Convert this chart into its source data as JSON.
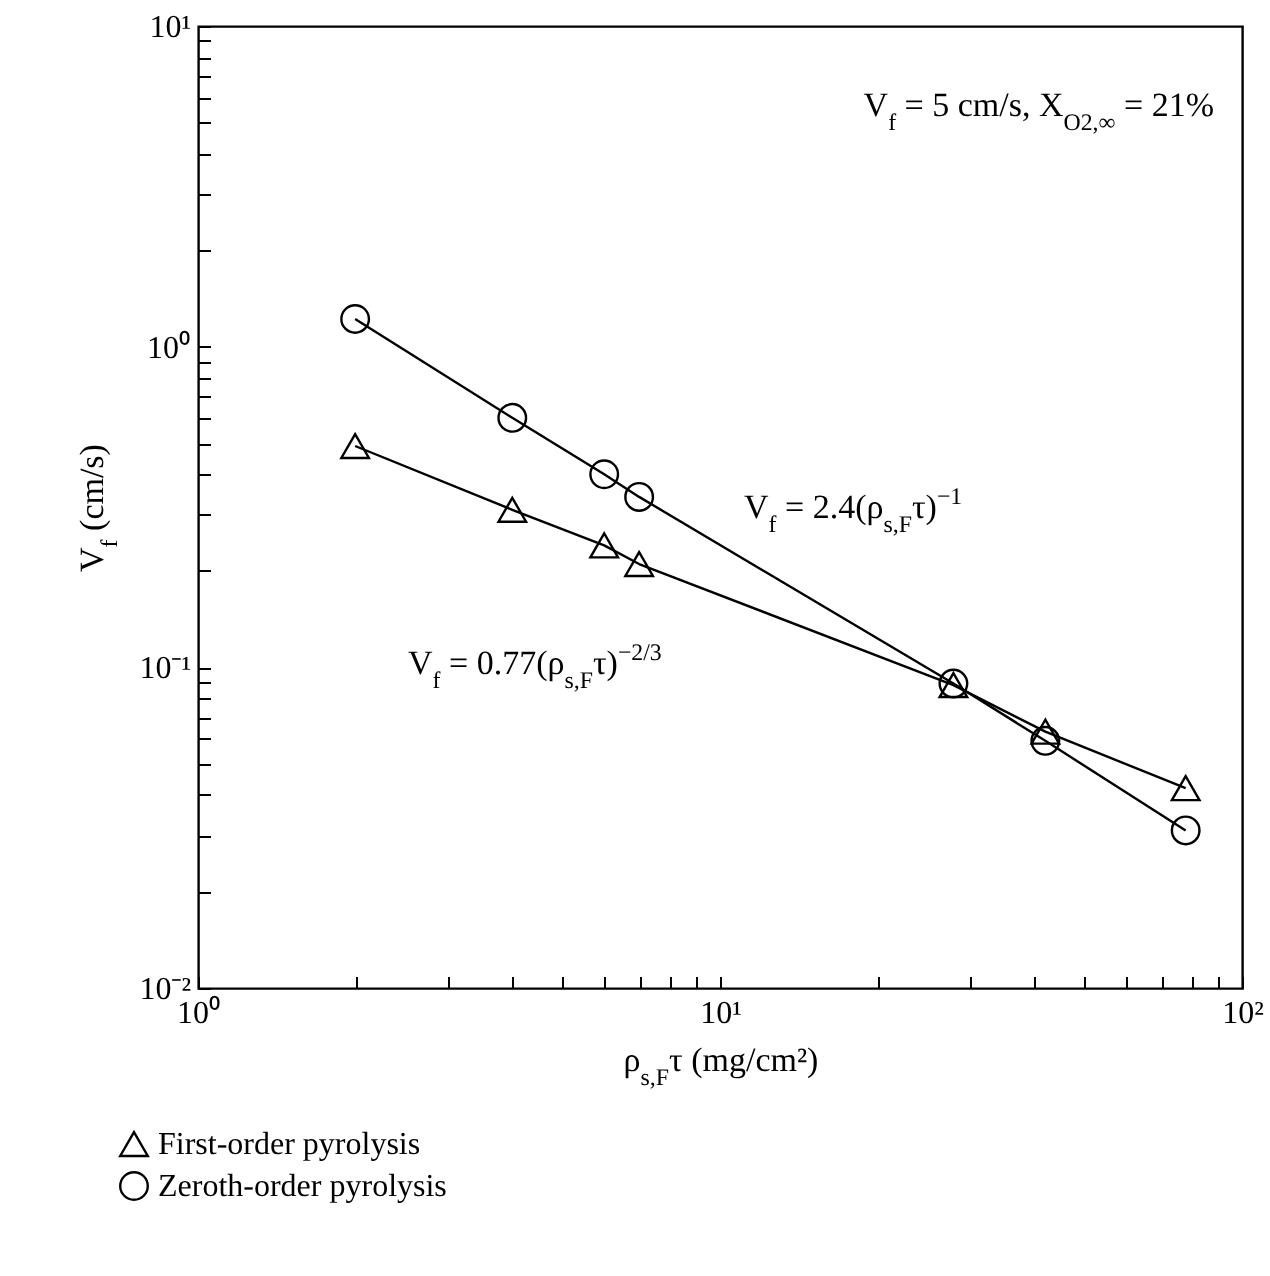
{
  "chart_data": {
    "type": "line",
    "xlabel": "ρ$_{s,F}$τ (mg/cm²)",
    "ylabel": "V$_{f}$ (cm/s)",
    "log": "xy",
    "grid": false,
    "legend": "bottom",
    "xlim": [
      1,
      100
    ],
    "ylim": [
      0.01,
      10
    ],
    "xticks": [
      {
        "value": 1,
        "label": "10⁰"
      },
      {
        "value": 2,
        "label": null
      },
      {
        "value": 3,
        "label": null
      },
      {
        "value": 4,
        "label": null
      },
      {
        "value": 5,
        "label": null
      },
      {
        "value": 6,
        "label": null
      },
      {
        "value": 7,
        "label": null
      },
      {
        "value": 8,
        "label": null
      },
      {
        "value": 9,
        "label": null
      },
      {
        "value": 10,
        "label": "10¹"
      },
      {
        "value": 20,
        "label": null
      },
      {
        "value": 30,
        "label": null
      },
      {
        "value": 40,
        "label": null
      },
      {
        "value": 50,
        "label": null
      },
      {
        "value": 60,
        "label": null
      },
      {
        "value": 70,
        "label": null
      },
      {
        "value": 80,
        "label": null
      },
      {
        "value": 90,
        "label": null
      },
      {
        "value": 100,
        "label": "10²"
      }
    ],
    "yticks": [
      {
        "value": 0.01,
        "label": "10⁻²"
      },
      {
        "value": 0.02,
        "label": null
      },
      {
        "value": 0.03,
        "label": null
      },
      {
        "value": 0.04,
        "label": null
      },
      {
        "value": 0.05,
        "label": null
      },
      {
        "value": 0.06,
        "label": null
      },
      {
        "value": 0.07,
        "label": null
      },
      {
        "value": 0.08,
        "label": null
      },
      {
        "value": 0.09,
        "label": null
      },
      {
        "value": 0.1,
        "label": "10⁻¹"
      },
      {
        "value": 0.2,
        "label": null
      },
      {
        "value": 0.3,
        "label": null
      },
      {
        "value": 0.4,
        "label": null
      },
      {
        "value": 0.5,
        "label": null
      },
      {
        "value": 0.6,
        "label": null
      },
      {
        "value": 0.7,
        "label": null
      },
      {
        "value": 0.8,
        "label": null
      },
      {
        "value": 0.9,
        "label": null
      },
      {
        "value": 1,
        "label": "10⁰"
      },
      {
        "value": 2,
        "label": null
      },
      {
        "value": 3,
        "label": null
      },
      {
        "value": 4,
        "label": null
      },
      {
        "value": 5,
        "label": null
      },
      {
        "value": 6,
        "label": null
      },
      {
        "value": 7,
        "label": null
      },
      {
        "value": 8,
        "label": null
      },
      {
        "value": 9,
        "label": null
      },
      {
        "value": 10,
        "label": "10¹"
      }
    ],
    "series": [
      {
        "name": "First-order pyrolysis",
        "color": "#000000",
        "marker": "triangle",
        "x": [
          2,
          4,
          6,
          7,
          28,
          42,
          78
        ],
        "values": [
          0.49,
          0.31,
          0.24,
          0.21,
          0.088,
          0.063,
          0.042
        ]
      },
      {
        "name": "Zeroth-order pyrolysis",
        "color": "#000000",
        "marker": "circle",
        "x": [
          2,
          4,
          6,
          7,
          28,
          42,
          78
        ],
        "values": [
          1.22,
          0.6,
          0.4,
          0.34,
          0.089,
          0.059,
          0.031
        ]
      }
    ],
    "annotations": [
      "V$_{f}$ = 5 cm/s, X$_{O2,∞}$ = 21%",
      "V$_{f}$ = 2.4(ρ$_{s,F}$τ)$^{−1}$",
      "V$_{f}$ = 0.77(ρ$_{s,F}$τ)$^{−2/3}$"
    ]
  }
}
